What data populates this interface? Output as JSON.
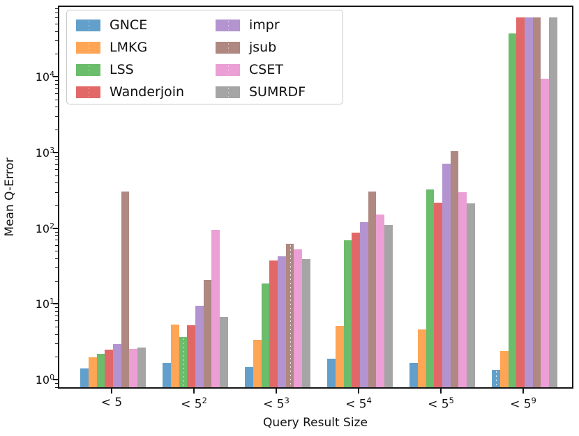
{
  "figure": {
    "background": "#ffffff"
  },
  "y_axis": {
    "label": "Mean Q-Error",
    "scale": "log",
    "tick_labels": [
      "10^0",
      "10^1",
      "10^2",
      "10^3",
      "10^4"
    ],
    "tick_exponents": [
      0,
      1,
      2,
      3,
      4
    ],
    "range_exponents": [
      -0.12,
      4.94
    ]
  },
  "x_axis": {
    "label": "Query Result Size",
    "tick_labels": [
      "< 5",
      "< 5^2",
      "< 5^3",
      "< 5^4",
      "< 5^5",
      "< 5^9"
    ]
  },
  "legend": {
    "position": "upper-left",
    "columns": 2,
    "entries": [
      {
        "label": "GNCE",
        "color": "#62A0CB"
      },
      {
        "label": "LMKG",
        "color": "#FFA556"
      },
      {
        "label": "LSS",
        "color": "#6BBC6B"
      },
      {
        "label": "Wanderjoin",
        "color": "#E26868"
      },
      {
        "label": "impr",
        "color": "#B494D0"
      },
      {
        "label": "jsub",
        "color": "#AE8881"
      },
      {
        "label": "CSET",
        "color": "#EB9FD4"
      },
      {
        "label": "SUMRDF",
        "color": "#A5A5A5"
      }
    ]
  },
  "chart_data": {
    "type": "bar",
    "title": "",
    "xlabel": "Query Result Size",
    "ylabel": "Mean Q-Error",
    "yscale": "log",
    "ylim": [
      0.76,
      87000
    ],
    "grid": false,
    "legend_position": "upper left",
    "categories": [
      "< 5",
      "< 5^2",
      "< 5^3",
      "< 5^4",
      "< 5^5",
      "< 5^9"
    ],
    "series": [
      {
        "name": "GNCE",
        "color": "#62A0CB",
        "values": [
          1.35,
          1.6,
          1.4,
          1.8,
          1.6,
          1.3
        ]
      },
      {
        "name": "LMKG",
        "color": "#FFA556",
        "values": [
          1.9,
          5.1,
          3.2,
          4.9,
          4.4,
          2.3
        ]
      },
      {
        "name": "LSS",
        "color": "#6BBC6B",
        "values": [
          2.1,
          3.5,
          18,
          66,
          310,
          36000
        ]
      },
      {
        "name": "Wanderjoin",
        "color": "#E26868",
        "values": [
          2.4,
          5.0,
          36,
          84,
          207,
          58000
        ]
      },
      {
        "name": "impr",
        "color": "#B494D0",
        "values": [
          2.8,
          9,
          41,
          115,
          680,
          58000
        ]
      },
      {
        "name": "jsub",
        "color": "#AE8881",
        "values": [
          290,
          20,
          60,
          290,
          1000,
          58000
        ]
      },
      {
        "name": "CSET",
        "color": "#EB9FD4",
        "values": [
          2.45,
          91,
          50,
          145,
          285,
          9000
        ]
      },
      {
        "name": "SUMRDF",
        "color": "#A5A5A5",
        "values": [
          2.55,
          6.4,
          37.5,
          105,
          205,
          58000
        ]
      }
    ],
    "error_marks": [
      {
        "series": "LSS",
        "category_index": 1
      },
      {
        "series": "jsub",
        "category_index": 2
      },
      {
        "series": "GNCE",
        "category_index": 5
      }
    ]
  }
}
